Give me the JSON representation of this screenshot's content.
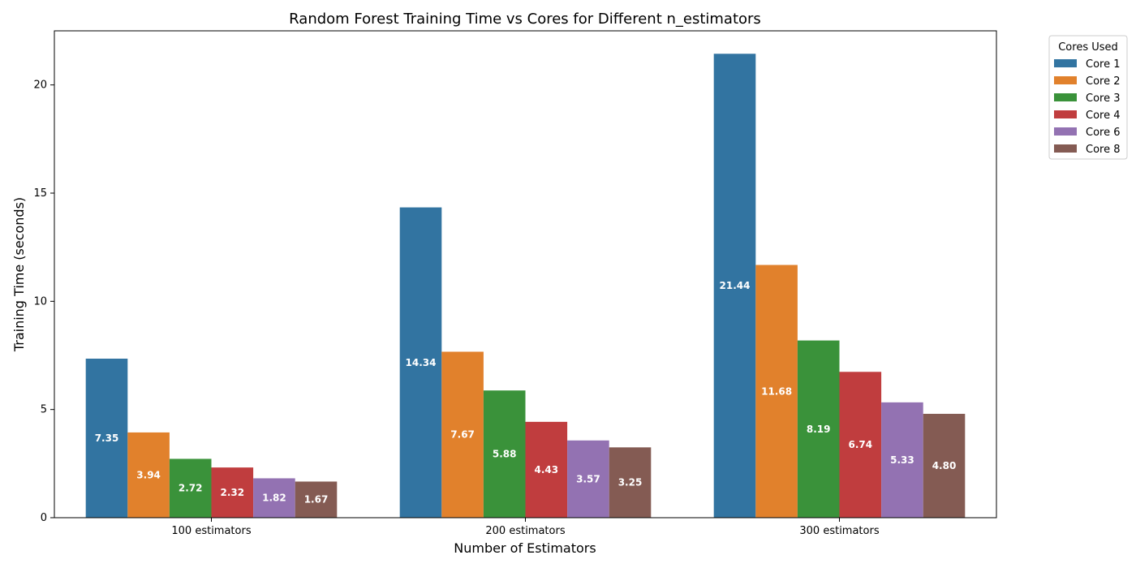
{
  "chart_data": {
    "type": "bar",
    "title": "Random Forest Training Time vs Cores for Different n_estimators",
    "xlabel": "Number of Estimators",
    "ylabel": "Training Time (seconds)",
    "categories": [
      "100 estimators",
      "200 estimators",
      "300 estimators"
    ],
    "ylim": [
      0,
      22.5
    ],
    "yticks": [
      0,
      5,
      10,
      15,
      20
    ],
    "grid": false,
    "legend": {
      "title": "Cores Used",
      "placement": "outside-top-right"
    },
    "series": [
      {
        "name": "Core 1",
        "color": "#3274a1",
        "values": [
          7.35,
          14.34,
          21.44
        ]
      },
      {
        "name": "Core 2",
        "color": "#e1812c",
        "values": [
          3.94,
          7.67,
          11.68
        ]
      },
      {
        "name": "Core 3",
        "color": "#3a923a",
        "values": [
          2.72,
          5.88,
          8.19
        ]
      },
      {
        "name": "Core 4",
        "color": "#c03d3e",
        "values": [
          2.32,
          4.43,
          6.74
        ]
      },
      {
        "name": "Core 6",
        "color": "#9372b2",
        "values": [
          1.82,
          3.57,
          5.33
        ]
      },
      {
        "name": "Core 8",
        "color": "#845b53",
        "values": [
          1.67,
          3.25,
          4.8
        ]
      }
    ]
  }
}
